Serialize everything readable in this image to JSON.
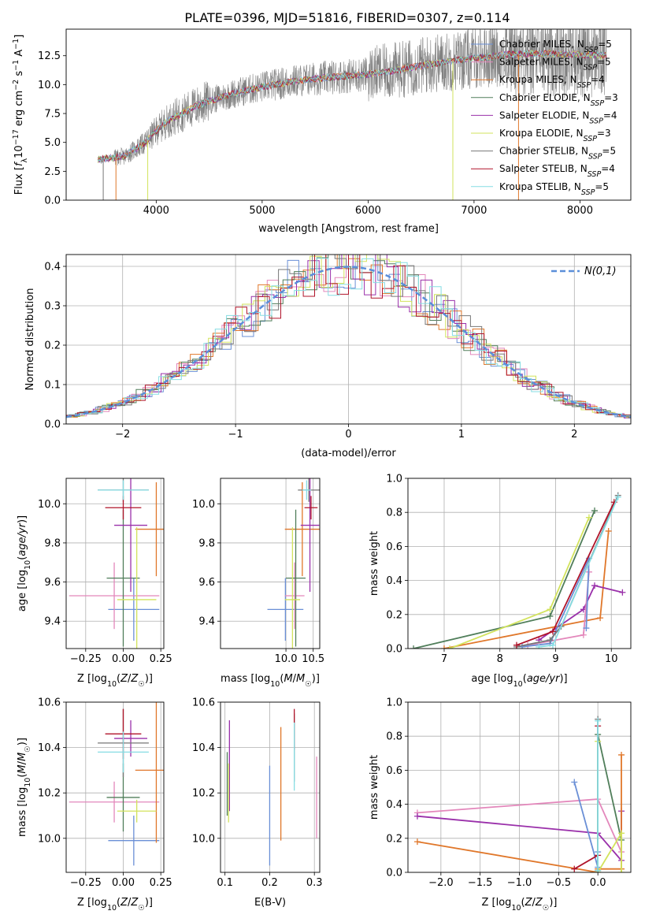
{
  "figure": {
    "title": "PLATE=0396, MJD=51816, FIBERID=0307, z=0.114"
  },
  "chart_data": [
    {
      "id": "spectrum",
      "type": "line",
      "xlabel": "wavelength [Angstrom, rest frame]",
      "ylabel": "Flux [f_λ10^-17 erg cm^-2 s^-1 A^-1]",
      "xlim": [
        3150,
        8480
      ],
      "ylim": [
        0,
        14.8
      ],
      "xticks": [
        4000,
        5000,
        6000,
        7000,
        8000
      ],
      "yticks": [
        0.0,
        2.5,
        5.0,
        7.5,
        10.0,
        12.5
      ],
      "grid": false,
      "legend_position": "right",
      "data_wavelength_range": [
        3450,
        8250
      ],
      "continuum": {
        "x": [
          3450,
          3700,
          3900,
          4000,
          4100,
          4300,
          4500,
          4800,
          5000,
          5300,
          5600,
          6000,
          6300,
          6600,
          7000,
          7300,
          7600,
          8000,
          8250
        ],
        "y": [
          3.5,
          3.8,
          5.0,
          6.0,
          6.8,
          7.8,
          8.6,
          9.4,
          9.8,
          10.3,
          10.6,
          10.9,
          11.3,
          11.8,
          12.3,
          12.6,
          12.7,
          12.6,
          12.5
        ]
      },
      "series": [
        {
          "name": "Chabrier MILES, N_SSP=5",
          "label_main": "Chabrier MILES, N",
          "label_sub": "SSP",
          "label_tail": "=5",
          "color": "#6a8fd6"
        },
        {
          "name": "Salpeter MILES, N_SSP=5",
          "label_main": "Salpeter MILES, N",
          "label_sub": "SSP",
          "label_tail": "=5",
          "color": "#e387bb"
        },
        {
          "name": "Kroupa MILES, N_SSP=4",
          "label_main": "Kroupa MILES, N",
          "label_sub": "SSP",
          "label_tail": "=4",
          "color": "#e0772a"
        },
        {
          "name": "Chabrier ELODIE, N_SSP=3",
          "label_main": "Chabrier ELODIE, N",
          "label_sub": "SSP",
          "label_tail": "=3",
          "color": "#507e5a"
        },
        {
          "name": "Salpeter ELODIE, N_SSP=4",
          "label_main": "Salpeter ELODIE, N",
          "label_sub": "SSP",
          "label_tail": "=4",
          "color": "#9a30aa"
        },
        {
          "name": "Kroupa ELODIE, N_SSP=3",
          "label_main": "Kroupa ELODIE, N",
          "label_sub": "SSP",
          "label_tail": "=3",
          "color": "#d2e35c"
        },
        {
          "name": "Chabrier STELIB, N_SSP=5",
          "label_main": "Chabrier STELIB, N",
          "label_sub": "SSP",
          "label_tail": "=5",
          "color": "#777777"
        },
        {
          "name": "Salpeter STELIB, N_SSP=4",
          "label_main": "Salpeter STELIB, N",
          "label_sub": "SSP",
          "label_tail": "=4",
          "color": "#b0142a"
        },
        {
          "name": "Kroupa STELIB, N_SSP=5",
          "label_main": "Kroupa STELIB, N",
          "label_sub": "SSP",
          "label_tail": "=5",
          "color": "#86dde3"
        }
      ]
    },
    {
      "id": "residuals",
      "type": "histogram",
      "xlabel": "(data-model)/error",
      "ylabel": "Normed distribution",
      "xlim": [
        -2.5,
        2.5
      ],
      "ylim": [
        0,
        0.43
      ],
      "xticks": [
        -2,
        -1,
        0,
        1,
        2
      ],
      "yticks": [
        0.0,
        0.1,
        0.2,
        0.3,
        0.4
      ],
      "grid": true,
      "bin_width": 0.1,
      "legend": "N(0,1)",
      "legend_position": "top-right",
      "gaussian_color": "#5b8fd9",
      "series_colors": [
        "#6a8fd6",
        "#e387bb",
        "#e0772a",
        "#507e5a",
        "#9a30aa",
        "#d2e35c",
        "#777777",
        "#b0142a",
        "#86dde3"
      ]
    },
    {
      "id": "age_vs_Z",
      "type": "errorbar",
      "xlabel": "Z [log10(Z/Z☉)]",
      "ylabel": "age [log10(age/yr)]",
      "xlim": [
        -0.38,
        0.27
      ],
      "ylim": [
        9.26,
        10.13
      ],
      "xticks": [
        -0.25,
        0.0,
        0.25
      ],
      "yticks": [
        9.4,
        9.6,
        9.8,
        10.0
      ],
      "grid": true,
      "points": [
        {
          "color": "#6a8fd6",
          "x": 0.07,
          "xerr": 0.17,
          "y": 9.46,
          "yerr": 0.16
        },
        {
          "color": "#e387bb",
          "x": -0.06,
          "xerr": 0.3,
          "y": 9.53,
          "yerr": 0.17
        },
        {
          "color": "#e0772a",
          "x": 0.22,
          "xerr": 0.14,
          "y": 9.87,
          "yerr": 0.24
        },
        {
          "color": "#507e5a",
          "x": 0.0,
          "xerr": 0.11,
          "y": 9.62,
          "yerr": 0.35
        },
        {
          "color": "#9a30aa",
          "x": 0.05,
          "xerr": 0.11,
          "y": 9.89,
          "yerr": 0.34
        },
        {
          "color": "#d2e35c",
          "x": 0.09,
          "xerr": 0.13,
          "y": 9.51,
          "yerr": 0.37
        },
        {
          "color": "#777777",
          "x": 0.0,
          "xerr": 0.17,
          "y": 10.07,
          "yerr": 0.06
        },
        {
          "color": "#b0142a",
          "x": 0.0,
          "xerr": 0.12,
          "y": 9.98,
          "yerr": 0.06
        },
        {
          "color": "#86dde3",
          "x": 0.0,
          "xerr": 0.17,
          "y": 10.07,
          "yerr": 0.05
        }
      ]
    },
    {
      "id": "age_vs_mass",
      "type": "errorbar",
      "xlabel": "mass [log10(M/M☉)]",
      "ylabel": "",
      "xlim": [
        8.8,
        10.62
      ],
      "ylim": [
        9.26,
        10.13
      ],
      "xticks": [
        10.0,
        10.5
      ],
      "yticks": [
        9.4,
        9.6,
        9.8,
        10.0
      ],
      "grid": true,
      "points": [
        {
          "color": "#6a8fd6",
          "x": 9.99,
          "xerr": 0.33,
          "y": 9.46,
          "yerr": 0.16
        },
        {
          "color": "#e387bb",
          "x": 10.16,
          "xerr": 0.18,
          "y": 9.53,
          "yerr": 0.17
        },
        {
          "color": "#e0772a",
          "x": 10.3,
          "xerr": 0.32,
          "y": 9.87,
          "yerr": 0.24
        },
        {
          "color": "#507e5a",
          "x": 10.18,
          "xerr": 0.18,
          "y": 9.62,
          "yerr": 0.35
        },
        {
          "color": "#9a30aa",
          "x": 10.44,
          "xerr": 0.17,
          "y": 9.89,
          "yerr": 0.34
        },
        {
          "color": "#d2e35c",
          "x": 10.12,
          "xerr": 0.14,
          "y": 9.51,
          "yerr": 0.37
        },
        {
          "color": "#777777",
          "x": 10.42,
          "xerr": 0.2,
          "y": 10.07,
          "yerr": 0.06
        },
        {
          "color": "#b0142a",
          "x": 10.46,
          "xerr": 0.12,
          "y": 9.98,
          "yerr": 0.06
        },
        {
          "color": "#86dde3",
          "x": 10.38,
          "xerr": 0.08,
          "y": 10.07,
          "yerr": 0.05
        }
      ]
    },
    {
      "id": "massweight_vs_age",
      "type": "line",
      "xlabel": "age [log10(age/yr)]",
      "ylabel": "mass weight",
      "xlim": [
        6.35,
        10.35
      ],
      "ylim": [
        0,
        1.0
      ],
      "xticks": [
        7,
        8,
        9,
        10
      ],
      "yticks": [
        0.0,
        0.2,
        0.4,
        0.6,
        0.8,
        1.0
      ],
      "grid": true,
      "series": [
        {
          "color": "#507e5a",
          "x": [
            6.45,
            8.9,
            9.7
          ],
          "y": [
            0.0,
            0.19,
            0.81
          ]
        },
        {
          "color": "#e0772a",
          "x": [
            7.0,
            9.8,
            9.95
          ],
          "y": [
            0.0,
            0.18,
            0.69
          ]
        },
        {
          "color": "#d2e35c",
          "x": [
            7.1,
            8.9,
            9.6
          ],
          "y": [
            0.0,
            0.23,
            0.77
          ]
        },
        {
          "color": "#9a30aa",
          "x": [
            8.7,
            9.5,
            9.7,
            10.2
          ],
          "y": [
            0.05,
            0.23,
            0.37,
            0.33
          ]
        },
        {
          "color": "#e387bb",
          "x": [
            8.5,
            9.5,
            9.6
          ],
          "y": [
            0.02,
            0.08,
            0.45
          ]
        },
        {
          "color": "#6a8fd6",
          "x": [
            8.4,
            8.9,
            9.6,
            9.55
          ],
          "y": [
            0.01,
            0.03,
            0.53,
            0.12
          ]
        },
        {
          "color": "#777777",
          "x": [
            8.3,
            8.9,
            9.1,
            10.12
          ],
          "y": [
            0.01,
            0.05,
            0.13,
            0.9
          ]
        },
        {
          "color": "#b0142a",
          "x": [
            8.3,
            8.95,
            10.05
          ],
          "y": [
            0.02,
            0.1,
            0.86
          ]
        },
        {
          "color": "#86dde3",
          "x": [
            8.7,
            8.95,
            10.12
          ],
          "y": [
            0.01,
            0.02,
            0.89
          ]
        }
      ]
    },
    {
      "id": "mass_vs_Z",
      "type": "errorbar",
      "xlabel": "Z [log10(Z/Z☉)]",
      "ylabel": "mass [log10(M/M☉)]",
      "xlim": [
        -0.38,
        0.27
      ],
      "ylim": [
        9.85,
        10.6
      ],
      "xticks": [
        -0.25,
        0.0,
        0.25
      ],
      "yticks": [
        10.0,
        10.2,
        10.4,
        10.6
      ],
      "grid": true,
      "points": [
        {
          "color": "#6a8fd6",
          "x": 0.07,
          "xerr": 0.17,
          "y": 9.99,
          "yerr": 0.11
        },
        {
          "color": "#e387bb",
          "x": -0.06,
          "xerr": 0.3,
          "y": 10.16,
          "yerr": 0.09
        },
        {
          "color": "#e0772a",
          "x": 0.22,
          "xerr": 0.14,
          "y": 10.3,
          "yerr": 0.32
        },
        {
          "color": "#507e5a",
          "x": 0.0,
          "xerr": 0.11,
          "y": 10.18,
          "yerr": 0.15
        },
        {
          "color": "#9a30aa",
          "x": 0.05,
          "xerr": 0.11,
          "y": 10.44,
          "yerr": 0.08
        },
        {
          "color": "#d2e35c",
          "x": 0.09,
          "xerr": 0.13,
          "y": 10.12,
          "yerr": 0.05
        },
        {
          "color": "#777777",
          "x": 0.0,
          "xerr": 0.17,
          "y": 10.42,
          "yerr": 0.15
        },
        {
          "color": "#b0142a",
          "x": 0.0,
          "xerr": 0.12,
          "y": 10.46,
          "yerr": 0.11
        },
        {
          "color": "#86dde3",
          "x": 0.0,
          "xerr": 0.17,
          "y": 10.38,
          "yerr": 0.09
        }
      ]
    },
    {
      "id": "mass_vs_ebv",
      "type": "errorbar",
      "xlabel": "E(B-V)",
      "ylabel": "",
      "xlim": [
        0.09,
        0.312
      ],
      "ylim": [
        9.85,
        10.6
      ],
      "xticks": [
        0.1,
        0.2,
        0.3
      ],
      "yticks": [
        10.0,
        10.2,
        10.4,
        10.6
      ],
      "grid": true,
      "points": [
        {
          "color": "#6a8fd6",
          "x": 0.2,
          "y": 10.1,
          "yerr": 0.22
        },
        {
          "color": "#e387bb",
          "x": 0.305,
          "y": 10.18,
          "yerr": 0.18
        },
        {
          "color": "#e0772a",
          "x": 0.225,
          "y": 10.24,
          "yerr": 0.25
        },
        {
          "color": "#507e5a",
          "x": 0.105,
          "y": 10.24,
          "yerr": 0.14
        },
        {
          "color": "#9a30aa",
          "x": 0.11,
          "y": 10.32,
          "yerr": 0.2
        },
        {
          "color": "#d2e35c",
          "x": 0.108,
          "y": 10.2,
          "yerr": 0.13
        },
        {
          "color": "#777777",
          "x": 0.255,
          "y": 10.4,
          "yerr": 0.15
        },
        {
          "color": "#b0142a",
          "x": 0.255,
          "y": 10.48,
          "yerr": 0.09
        },
        {
          "color": "#86dde3",
          "x": 0.255,
          "y": 10.36,
          "yerr": 0.15
        }
      ]
    },
    {
      "id": "massweight_vs_Z",
      "type": "line",
      "xlabel": "Z [log10(Z/Z☉)]",
      "ylabel": "mass weight",
      "xlim": [
        -2.42,
        0.42
      ],
      "ylim": [
        0,
        1.0
      ],
      "xticks": [
        -2.0,
        -1.5,
        -1.0,
        -0.5,
        0.0
      ],
      "yticks": [
        0.0,
        0.2,
        0.4,
        0.6,
        0.8,
        1.0
      ],
      "grid": true,
      "series": [
        {
          "color": "#e387bb",
          "x": [
            -2.3,
            0.0,
            0.3
          ],
          "y": [
            0.35,
            0.43,
            0.12
          ]
        },
        {
          "color": "#9a30aa",
          "x": [
            -2.3,
            0.0,
            0.3,
            0.3
          ],
          "y": [
            0.33,
            0.23,
            0.07,
            0.36
          ]
        },
        {
          "color": "#e0772a",
          "x": [
            -2.3,
            0.0,
            0.0,
            0.3,
            0.3
          ],
          "y": [
            0.18,
            0.0,
            0.02,
            0.02,
            0.69
          ]
        },
        {
          "color": "#6a8fd6",
          "x": [
            -0.3,
            0.0,
            0.0
          ],
          "y": [
            0.53,
            0.03,
            0.12
          ]
        },
        {
          "color": "#b0142a",
          "x": [
            -0.3,
            0.0,
            0.0
          ],
          "y": [
            0.02,
            0.1,
            0.86
          ]
        },
        {
          "color": "#507e5a",
          "x": [
            0.0,
            0.0,
            0.3
          ],
          "y": [
            0.0,
            0.81,
            0.19
          ]
        },
        {
          "color": "#d2e35c",
          "x": [
            0.0,
            0.0,
            0.3,
            0.3
          ],
          "y": [
            0.77,
            0.0,
            0.23,
            0.0
          ]
        },
        {
          "color": "#777777",
          "x": [
            0.0,
            0.0
          ],
          "y": [
            0.01,
            0.9
          ]
        },
        {
          "color": "#86dde3",
          "x": [
            0.0,
            0.0
          ],
          "y": [
            0.01,
            0.89
          ]
        }
      ]
    }
  ]
}
